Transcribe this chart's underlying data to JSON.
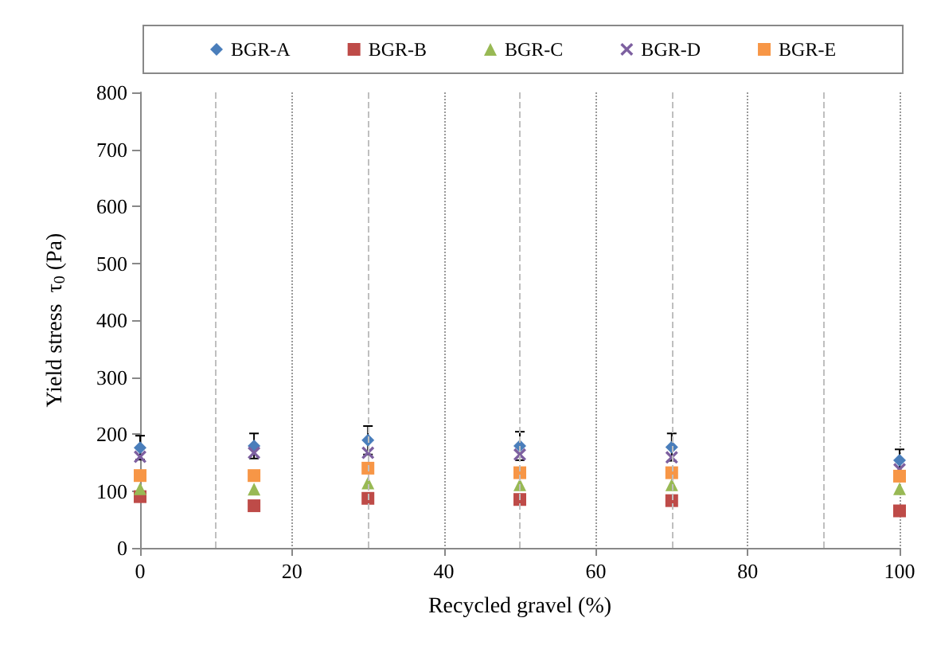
{
  "chart_data": {
    "type": "scatter",
    "xlabel": "Recycled gravel (%)",
    "ylabel": "Yield stress  τ$_{0}$ (Pa)",
    "x": [
      0,
      15,
      30,
      50,
      70,
      100
    ],
    "xlim": [
      0,
      100
    ],
    "xticks": [
      0,
      20,
      40,
      60,
      80,
      100
    ],
    "ylim": [
      0,
      800
    ],
    "yticks": [
      0,
      100,
      200,
      300,
      400,
      500,
      600,
      700,
      800
    ],
    "grid": "x",
    "legend": "top",
    "ref_lines": [
      {
        "axis": "x",
        "value": 10,
        "label": null,
        "color": "#bfbfbf",
        "line_style": "dashed"
      },
      {
        "axis": "x",
        "value": 30,
        "label": null,
        "color": "#bfbfbf",
        "line_style": "dashed"
      },
      {
        "axis": "x",
        "value": 50,
        "label": null,
        "color": "#bfbfbf",
        "line_style": "dashed"
      },
      {
        "axis": "x",
        "value": 70,
        "label": null,
        "color": "#bfbfbf",
        "line_style": "dashed"
      },
      {
        "axis": "x",
        "value": 90,
        "label": null,
        "color": "#bfbfbf",
        "line_style": "dashed"
      }
    ],
    "series": [
      {
        "name": "BGR-A",
        "color": "#4a7ebb",
        "marker": "diamond",
        "values": [
          176,
          179,
          189,
          179,
          177,
          154
        ],
        "errors": [
          21,
          22,
          25,
          25,
          24,
          19
        ]
      },
      {
        "name": "BGR-B",
        "color": "#be4b48",
        "marker": "square",
        "values": [
          90,
          74,
          87,
          85,
          83,
          65
        ]
      },
      {
        "name": "BGR-C",
        "color": "#98b954",
        "marker": "triangle",
        "values": [
          104,
          103,
          114,
          111,
          111,
          104
        ]
      },
      {
        "name": "BGR-D",
        "color": "#7d60a0",
        "marker": "cross",
        "values": [
          160,
          167,
          167,
          164,
          159,
          138
        ]
      },
      {
        "name": "BGR-E",
        "color": "#f79646",
        "marker": "square",
        "values": [
          127,
          127,
          140,
          132,
          132,
          126
        ]
      }
    ]
  }
}
